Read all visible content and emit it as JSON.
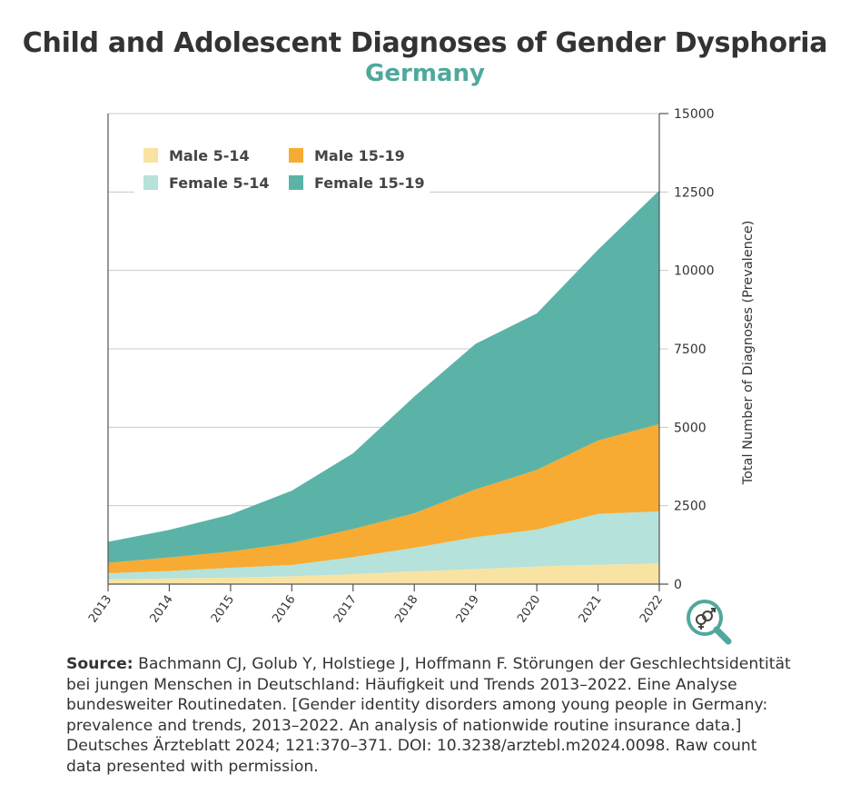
{
  "header": {
    "title": "Child and Adolescent Diagnoses of Gender Dysphoria",
    "subtitle": "Germany"
  },
  "colors": {
    "male_5_14": "#f8e3a2",
    "male_15_19": "#f7ab32",
    "female_5_14": "#b5e2da",
    "female_15_19": "#5bb3a7",
    "accent": "#4fa89c"
  },
  "icon": {
    "name": "gender-search-icon"
  },
  "source": {
    "label": "Source:",
    "text": "Bachmann CJ, Golub Y, Holstiege J, Hoffmann F. Störungen der Geschlechtsidentität bei jungen Menschen in Deutschland: Häufigkeit und Trends 2013–2022. Eine Analyse bundesweiter Routinedaten. [Gender identity disorders among young people in Germany: prevalence and trends, 2013–2022. An analysis of nationwide routine insurance data.] Deutsches Ärzteblatt 2024; 121:370–371. DOI: 10.3238/arztebl.m2024.0098. Raw count data presented with permission."
  },
  "chart_data": {
    "type": "area",
    "stacked": true,
    "title": "Child and Adolescent Diagnoses of Gender Dysphoria",
    "subtitle": "Germany",
    "xlabel": "",
    "ylabel": "Total Number of Diagnoses (Prevalence)",
    "y_axis_side": "right",
    "ylim": [
      0,
      15000
    ],
    "yticks": [
      0,
      2500,
      5000,
      7500,
      10000,
      12500,
      15000
    ],
    "grid": true,
    "legend_position": "top-left",
    "x": [
      "2013",
      "2014",
      "2015",
      "2016",
      "2017",
      "2018",
      "2019",
      "2020",
      "2021",
      "2022"
    ],
    "series": [
      {
        "name": "Male 5-14",
        "color": "#f8e3a2",
        "values": [
          150,
          180,
          210,
          250,
          320,
          410,
          480,
          560,
          620,
          660
        ]
      },
      {
        "name": "Female 5-14",
        "color": "#b5e2da",
        "values": [
          200,
          240,
          310,
          360,
          540,
          750,
          1020,
          1180,
          1620,
          1660
        ]
      },
      {
        "name": "Male 15-19",
        "color": "#f7ab32",
        "values": [
          330,
          430,
          520,
          700,
          900,
          1100,
          1520,
          1900,
          2340,
          2780
        ]
      },
      {
        "name": "Female 15-19",
        "color": "#5bb3a7",
        "values": [
          670,
          880,
          1180,
          1670,
          2410,
          3720,
          4640,
          4990,
          6080,
          7450
        ]
      }
    ],
    "legend": [
      "Male 5-14",
      "Male 15-19",
      "Female 5-14",
      "Female 15-19"
    ]
  }
}
